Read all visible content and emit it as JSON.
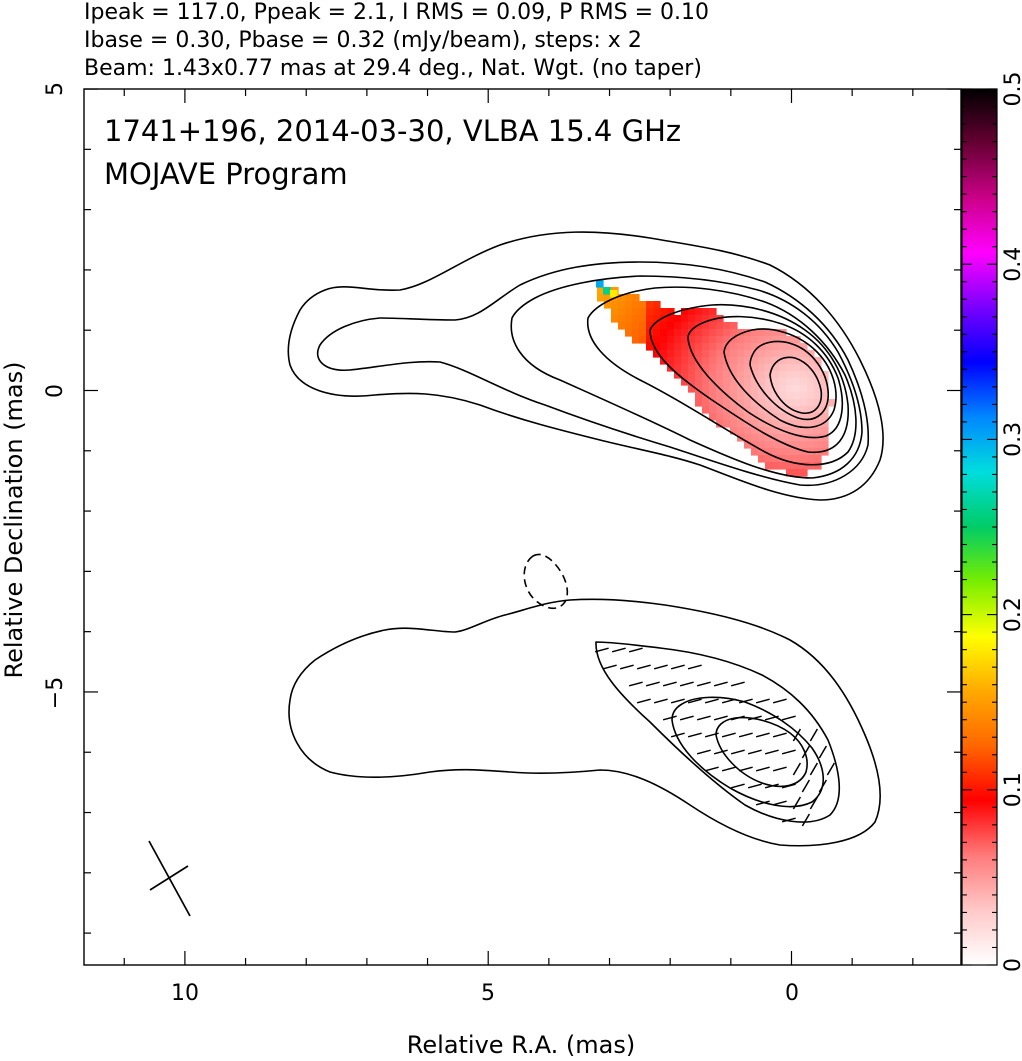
{
  "header": {
    "line1": "Ipeak = 117.0, Ppeak = 2.1, I RMS = 0.09, P RMS = 0.10",
    "line2": "Ibase = 0.30, Pbase = 0.32 (mJy/beam), steps: x 2",
    "line3": "Beam: 1.43x0.77 mas at 29.4 deg., Nat. Wgt. (no taper)"
  },
  "chart_data": [
    {
      "type": "heatmap",
      "title": "1741+196, 2014-03-30, VLBA 15.4 GHz",
      "subtitle": "MOJAVE Program",
      "xlabel": "Relative R.A. (mas)",
      "ylabel": "Relative Declination (mas)",
      "xlim": [
        11.7,
        -2.8
      ],
      "ylim": [
        -9.6,
        5.0
      ],
      "x_ticks": [
        "10",
        "5",
        "0"
      ],
      "y_ticks": [
        "5",
        "0",
        "−5"
      ],
      "contour_levels_mJy_per_beam": [
        0.3,
        0.6,
        1.2,
        2.4,
        4.8,
        9.6,
        19.2,
        38.4,
        76.8
      ],
      "components": [
        {
          "x": 0.0,
          "y": 0.0,
          "peak_mJy": 117.0
        },
        {
          "x": -0.2,
          "y": -6.2,
          "polarized": true
        }
      ],
      "beam": {
        "major_mas": 1.43,
        "minor_mas": 0.77,
        "pa_deg": 29.4,
        "x": 10.3,
        "y": -8.1
      },
      "colorbar": {
        "ticks": [
          "0",
          "0.1",
          "0.2",
          "0.3",
          "0.4",
          "0.5"
        ],
        "range": [
          0,
          0.5
        ],
        "colors": [
          "#ffffff",
          "#ffc8c8",
          "#ff7a7a",
          "#ff0000",
          "#ff6600",
          "#ffaa00",
          "#ffff00",
          "#77ee00",
          "#00cc66",
          "#00dddd",
          "#0088ff",
          "#0000ff",
          "#7700ff",
          "#ff00ff",
          "#cc0088",
          "#660033",
          "#000000"
        ]
      }
    }
  ]
}
